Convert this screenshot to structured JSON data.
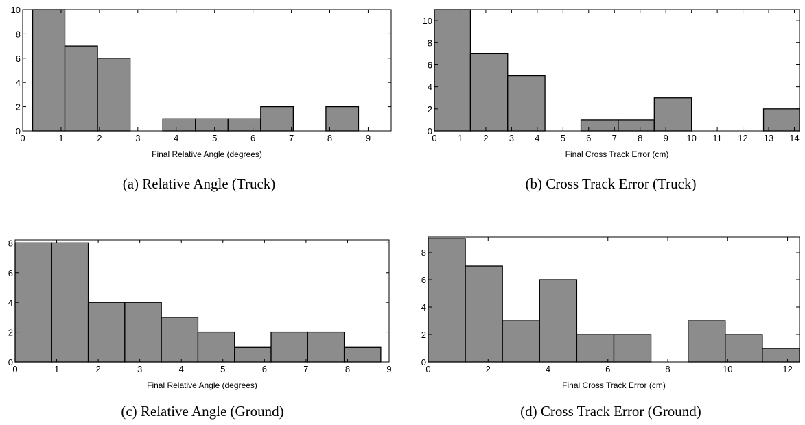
{
  "colors": {
    "bar_fill": "#8c8c8c",
    "bar_stroke": "#000000",
    "axes": "#000000",
    "background": "#ffffff"
  },
  "chart_data": [
    {
      "type": "bar",
      "histogram": true,
      "caption": "(a)  Relative Angle (Truck)",
      "xlabel": "Final Relative Angle (degrees)",
      "ylabel": "",
      "xlim": [
        0,
        9.6
      ],
      "ylim": [
        0,
        10
      ],
      "xticks": [
        0,
        1,
        2,
        3,
        4,
        5,
        6,
        7,
        8,
        9
      ],
      "yticks": [
        0,
        2,
        4,
        6,
        8,
        10
      ],
      "bins": [
        {
          "start": 0.26,
          "end": 1.1,
          "value": 10
        },
        {
          "start": 1.1,
          "end": 1.95,
          "value": 7
        },
        {
          "start": 1.95,
          "end": 2.8,
          "value": 6
        },
        {
          "start": 2.8,
          "end": 3.65,
          "value": 0
        },
        {
          "start": 3.65,
          "end": 4.5,
          "value": 1
        },
        {
          "start": 4.5,
          "end": 5.35,
          "value": 1
        },
        {
          "start": 5.35,
          "end": 6.2,
          "value": 1
        },
        {
          "start": 6.2,
          "end": 7.05,
          "value": 2
        },
        {
          "start": 7.05,
          "end": 7.9,
          "value": 0
        },
        {
          "start": 7.9,
          "end": 8.75,
          "value": 2
        }
      ]
    },
    {
      "type": "bar",
      "histogram": true,
      "caption": "(b)  Cross Track Error (Truck)",
      "xlabel": "Final Cross Track Error (cm)",
      "ylabel": "",
      "xlim": [
        0,
        14.2
      ],
      "ylim": [
        0,
        11
      ],
      "xticks": [
        0,
        1,
        2,
        3,
        4,
        5,
        6,
        7,
        8,
        9,
        10,
        11,
        12,
        13,
        14
      ],
      "yticks": [
        0,
        2,
        4,
        6,
        8,
        10
      ],
      "bins": [
        {
          "start": 0,
          "end": 1.4,
          "value": 11
        },
        {
          "start": 1.4,
          "end": 2.85,
          "value": 7
        },
        {
          "start": 2.85,
          "end": 4.3,
          "value": 5
        },
        {
          "start": 4.3,
          "end": 5.7,
          "value": 0
        },
        {
          "start": 5.7,
          "end": 7.15,
          "value": 1
        },
        {
          "start": 7.15,
          "end": 8.55,
          "value": 1
        },
        {
          "start": 8.55,
          "end": 10.0,
          "value": 3
        },
        {
          "start": 10.0,
          "end": 11.4,
          "value": 0
        },
        {
          "start": 11.4,
          "end": 12.8,
          "value": 0
        },
        {
          "start": 12.8,
          "end": 14.2,
          "value": 2
        }
      ]
    },
    {
      "type": "bar",
      "histogram": true,
      "caption": "(c)  Relative Angle (Ground)",
      "xlabel": "Final Relative Angle (degrees)",
      "ylabel": "",
      "xlim": [
        0,
        9
      ],
      "ylim": [
        0,
        8.2
      ],
      "xticks": [
        0,
        1,
        2,
        3,
        4,
        5,
        6,
        7,
        8,
        9
      ],
      "yticks": [
        0,
        2,
        4,
        6,
        8
      ],
      "bins": [
        {
          "start": 0,
          "end": 0.88,
          "value": 8
        },
        {
          "start": 0.88,
          "end": 1.76,
          "value": 8
        },
        {
          "start": 1.76,
          "end": 2.64,
          "value": 4
        },
        {
          "start": 2.64,
          "end": 3.52,
          "value": 4
        },
        {
          "start": 3.52,
          "end": 4.4,
          "value": 3
        },
        {
          "start": 4.4,
          "end": 5.28,
          "value": 2
        },
        {
          "start": 5.28,
          "end": 6.16,
          "value": 1
        },
        {
          "start": 6.16,
          "end": 7.04,
          "value": 2
        },
        {
          "start": 7.04,
          "end": 7.92,
          "value": 2
        },
        {
          "start": 7.92,
          "end": 8.8,
          "value": 1
        }
      ]
    },
    {
      "type": "bar",
      "histogram": true,
      "caption": "(d)  Cross Track Error (Ground)",
      "xlabel": "Final Cross Track Error (cm)",
      "ylabel": "",
      "xlim": [
        0,
        12.4
      ],
      "ylim": [
        0,
        9.1
      ],
      "xticks": [
        0,
        2,
        4,
        6,
        8,
        10,
        12
      ],
      "yticks": [
        0,
        2,
        4,
        6,
        8
      ],
      "bins": [
        {
          "start": 0,
          "end": 1.24,
          "value": 9
        },
        {
          "start": 1.24,
          "end": 2.48,
          "value": 7
        },
        {
          "start": 2.48,
          "end": 3.72,
          "value": 3
        },
        {
          "start": 3.72,
          "end": 4.96,
          "value": 6
        },
        {
          "start": 4.96,
          "end": 6.2,
          "value": 2
        },
        {
          "start": 6.2,
          "end": 7.44,
          "value": 2
        },
        {
          "start": 7.44,
          "end": 8.68,
          "value": 0
        },
        {
          "start": 8.68,
          "end": 9.92,
          "value": 3
        },
        {
          "start": 9.92,
          "end": 11.16,
          "value": 2
        },
        {
          "start": 11.16,
          "end": 12.4,
          "value": 1
        }
      ]
    }
  ]
}
